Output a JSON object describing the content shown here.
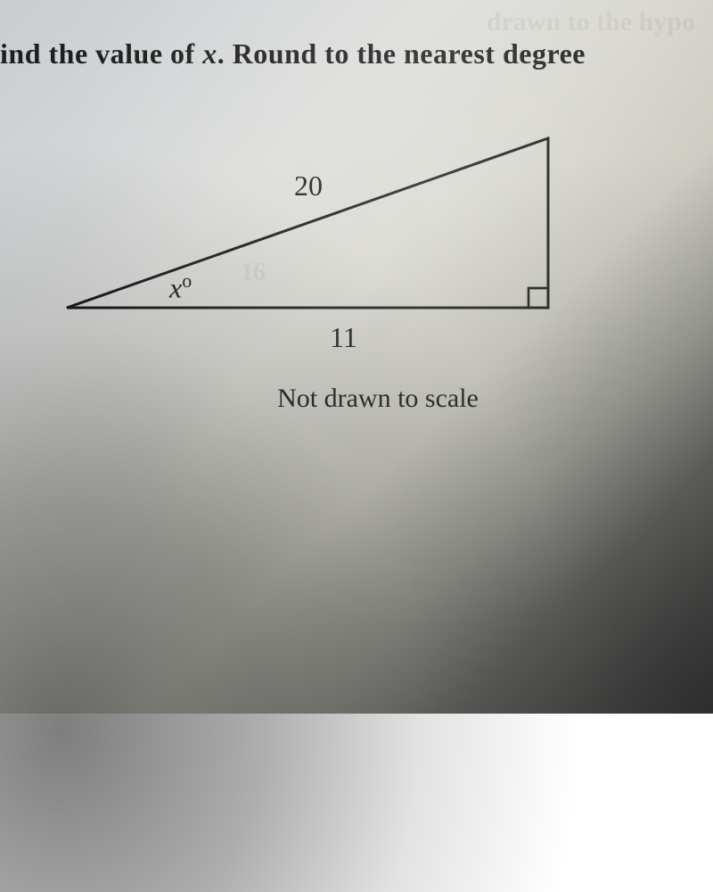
{
  "question": {
    "prefix": "ind the value of ",
    "var": "x",
    "suffix": ". Round to the nearest degree"
  },
  "triangle": {
    "type": "right-triangle",
    "vertices": {
      "A": [
        20,
        210
      ],
      "B": [
        560,
        210
      ],
      "C": [
        560,
        20
      ]
    },
    "right_angle_vertex": "B",
    "stroke_color": "#1a1a1a",
    "stroke_width": 3,
    "right_angle_box_size": 22,
    "labels": {
      "hypotenuse": "20",
      "base": "11",
      "angle": {
        "symbol": "x",
        "degree": "o"
      }
    },
    "label_fontsize": 32,
    "label_color": "#1b1b1b"
  },
  "note": "Not drawn to scale",
  "ghost_text": {
    "top": "drawn to the hypo",
    "mid": "16"
  },
  "paper": {
    "background_gradient": [
      "#c9cdd0",
      "#d2d5d7",
      "#dcddda",
      "#d8d7d0",
      "#cccbc2",
      "#9e9e97",
      "#6b6c68",
      "#4d4e4c",
      "#3a3b3a"
    ]
  }
}
